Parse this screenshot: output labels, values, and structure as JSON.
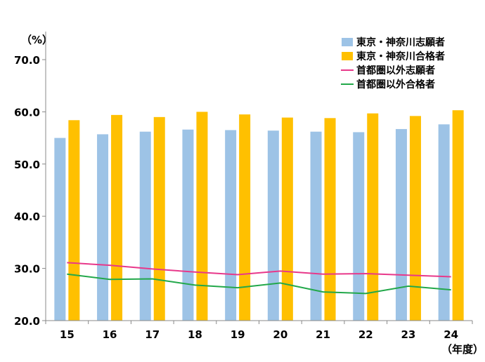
{
  "chart_data": {
    "type": "bar",
    "title": "",
    "ylabel": "（%）",
    "xlabel": "（年度）",
    "categories": [
      "15",
      "16",
      "17",
      "18",
      "19",
      "20",
      "21",
      "22",
      "23",
      "24"
    ],
    "ylim": [
      20,
      70
    ],
    "yticks": [
      "20.0",
      "30.0",
      "40.0",
      "50.0",
      "60.0",
      "70.0"
    ],
    "grid": false,
    "legend_position": "top-right",
    "series": [
      {
        "name": "東京・神奈川志願者",
        "kind": "bar",
        "color": "#9DC3E6",
        "values": [
          55.0,
          55.7,
          56.2,
          56.6,
          56.5,
          56.4,
          56.2,
          56.1,
          56.7,
          57.6
        ]
      },
      {
        "name": "東京・神奈川合格者",
        "kind": "bar",
        "color": "#FFC000",
        "values": [
          58.4,
          59.4,
          59.0,
          60.0,
          59.5,
          58.9,
          58.8,
          59.7,
          59.2,
          60.3
        ]
      },
      {
        "name": "首都圏以外志願者",
        "kind": "line",
        "color": "#E8388A",
        "values": [
          31.1,
          30.6,
          29.9,
          29.3,
          28.8,
          29.5,
          28.9,
          29.0,
          28.7,
          28.4
        ]
      },
      {
        "name": "首都圏以外合格者",
        "kind": "line",
        "color": "#22A84A",
        "values": [
          28.9,
          27.9,
          28.0,
          26.8,
          26.3,
          27.2,
          25.5,
          25.2,
          26.6,
          25.9
        ]
      }
    ]
  }
}
